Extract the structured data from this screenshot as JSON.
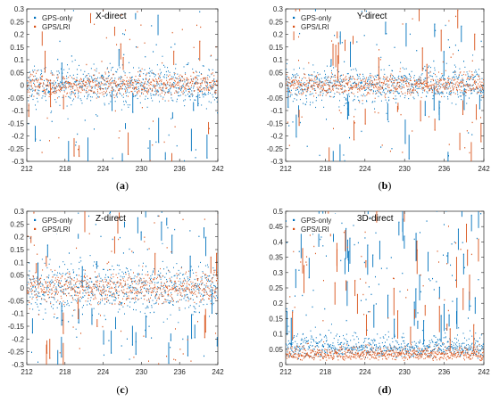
{
  "chart_data": [
    {
      "type": "scatter",
      "title": "X-direct",
      "caption_letter": "a",
      "x_ticks": [
        "212",
        "218",
        "224",
        "230",
        "236",
        "242"
      ],
      "y_ticks": [
        "-0.3",
        "-0.25",
        "-0.2",
        "-0.15",
        "-0.1",
        "-0.05",
        "0",
        "0.05",
        "0.1",
        "0.15",
        "0.2",
        "0.25",
        "0.3"
      ],
      "xlim": [
        212,
        242
      ],
      "ylim": [
        -0.3,
        0.3
      ],
      "series": [
        {
          "name": "GPS-only",
          "color": "#0072BD",
          "noise_sd": 0.038,
          "spike_count": 60,
          "spike_max": 0.3
        },
        {
          "name": "GPS/LRI",
          "color": "#D95319",
          "noise_sd": 0.022,
          "spike_count": 60,
          "spike_max": 0.3
        }
      ],
      "grid": false,
      "legend_position": "top-left"
    },
    {
      "type": "scatter",
      "title": "Y-direct",
      "caption_letter": "b",
      "x_ticks": [
        "212",
        "218",
        "224",
        "230",
        "236",
        "242"
      ],
      "y_ticks": [
        "-0.3",
        "-0.25",
        "-0.2",
        "-0.15",
        "-0.1",
        "-0.05",
        "0",
        "0.05",
        "0.1",
        "0.15",
        "0.2",
        "0.25",
        "0.3"
      ],
      "xlim": [
        212,
        242
      ],
      "ylim": [
        -0.3,
        0.3
      ],
      "series": [
        {
          "name": "GPS-only",
          "color": "#0072BD",
          "noise_sd": 0.036,
          "spike_count": 70,
          "spike_max": 0.3
        },
        {
          "name": "GPS/LRI",
          "color": "#D95319",
          "noise_sd": 0.02,
          "spike_count": 70,
          "spike_max": 0.3
        }
      ],
      "grid": false,
      "legend_position": "top-left"
    },
    {
      "type": "scatter",
      "title": "Z-direct",
      "caption_letter": "c",
      "x_ticks": [
        "212",
        "218",
        "224",
        "230",
        "236",
        "242"
      ],
      "y_ticks": [
        "-0.3",
        "-0.25",
        "-0.2",
        "-0.15",
        "-0.1",
        "-0.05",
        "0",
        "0.05",
        "0.1",
        "0.15",
        "0.2",
        "0.25",
        "0.3"
      ],
      "xlim": [
        212,
        242
      ],
      "ylim": [
        -0.3,
        0.3
      ],
      "series": [
        {
          "name": "GPS-only",
          "color": "#0072BD",
          "noise_sd": 0.05,
          "spike_count": 90,
          "spike_max": 0.3
        },
        {
          "name": "GPS/LRI",
          "color": "#D95319",
          "noise_sd": 0.03,
          "spike_count": 70,
          "spike_max": 0.3
        }
      ],
      "grid": false,
      "legend_position": "top-left"
    },
    {
      "type": "scatter",
      "title": "3D-direct",
      "caption_letter": "d",
      "x_ticks": [
        "212",
        "218",
        "224",
        "230",
        "236",
        "242"
      ],
      "y_ticks": [
        "0",
        "0.05",
        "0.1",
        "0.15",
        "0.2",
        "0.25",
        "0.3",
        "0.35",
        "0.4",
        "0.45",
        "0.5"
      ],
      "xlim": [
        212,
        242
      ],
      "ylim": [
        0,
        0.5
      ],
      "series": [
        {
          "name": "GPS-only",
          "color": "#0072BD",
          "baseline": 0.055,
          "noise_sd": 0.03,
          "spike_count": 140,
          "spike_max": 0.5
        },
        {
          "name": "GPS/LRI",
          "color": "#D95319",
          "baseline": 0.035,
          "noise_sd": 0.016,
          "spike_count": 80,
          "spike_max": 0.5
        }
      ],
      "grid": false,
      "legend_position": "top-left"
    }
  ]
}
